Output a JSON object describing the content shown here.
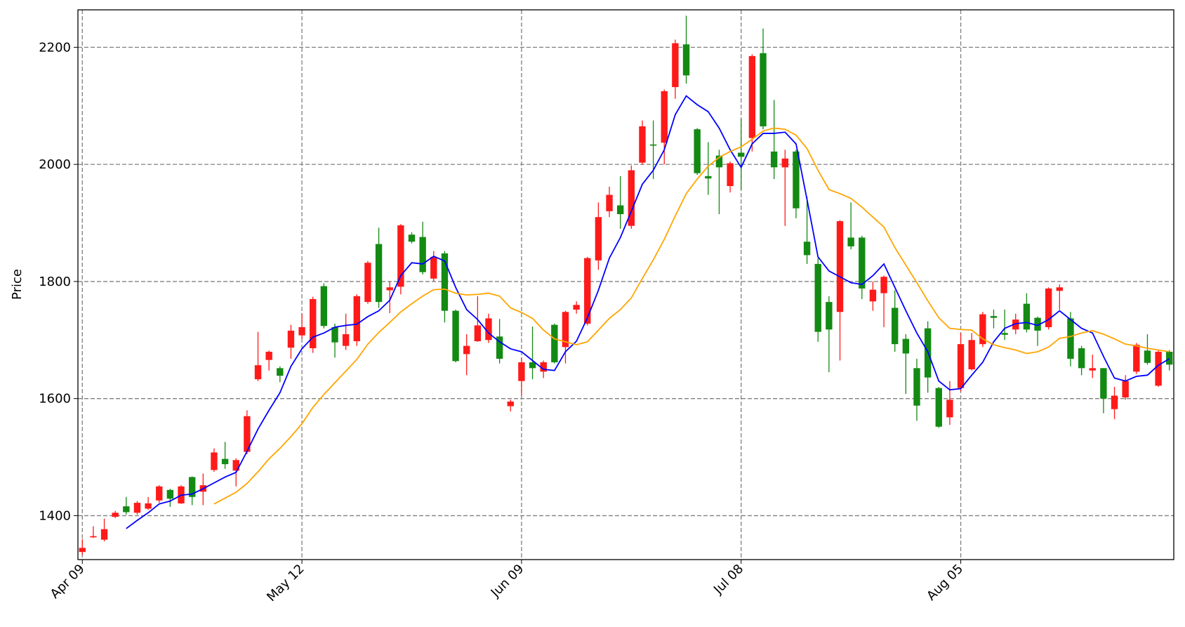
{
  "chart_data": {
    "type": "candlestick",
    "ylabel": "Price",
    "categories": [
      "Apr 09",
      null,
      null,
      null,
      null,
      null,
      null,
      null,
      null,
      null,
      null,
      null,
      null,
      null,
      null,
      null,
      null,
      null,
      null,
      null,
      "May 12",
      null,
      null,
      null,
      null,
      null,
      null,
      null,
      null,
      null,
      null,
      null,
      null,
      null,
      null,
      null,
      null,
      null,
      null,
      null,
      "Jun 09",
      null,
      null,
      null,
      null,
      null,
      null,
      null,
      null,
      null,
      null,
      null,
      null,
      null,
      null,
      null,
      null,
      null,
      null,
      null,
      "Jul 08",
      null,
      null,
      null,
      null,
      null,
      null,
      null,
      null,
      null,
      null,
      null,
      null,
      null,
      null,
      null,
      null,
      null,
      null,
      null,
      "Aug 05",
      null,
      null,
      null,
      null,
      null,
      null,
      null,
      null,
      null,
      null,
      null,
      null,
      null,
      null,
      null,
      null,
      null,
      null,
      null
    ],
    "open": [
      1338,
      1363,
      1359,
      1398,
      1416,
      1405,
      1412,
      1426,
      1444,
      1421,
      1466,
      1441,
      1478,
      1497,
      1477,
      1509,
      1633,
      1666,
      1652,
      1687,
      1708,
      1686,
      1792,
      1722,
      1690,
      1698,
      1765,
      1864,
      1785,
      1791,
      1880,
      1876,
      1805,
      1848,
      1750,
      1676,
      1698,
      1700,
      1706,
      1587,
      1630,
      1662,
      1646,
      1726,
      1688,
      1752,
      1728,
      1836,
      1920,
      1930,
      1895,
      2003,
      2034,
      2037,
      2132,
      2205,
      2060,
      1980,
      2015,
      1963,
      2020,
      2045,
      2190,
      2022,
      1995,
      2022,
      1868,
      1830,
      1765,
      1748,
      1875,
      1875,
      1766,
      1780,
      1755,
      1702,
      1652,
      1720,
      1618,
      1568,
      1618,
      1650,
      1693,
      1741,
      1712,
      1718,
      1762,
      1738,
      1722,
      1784,
      1737,
      1686,
      1648,
      1652,
      1582,
      1602,
      1646,
      1682,
      1622,
      1680
    ],
    "high": [
      1360,
      1382,
      1395,
      1408,
      1432,
      1425,
      1432,
      1452,
      1446,
      1452,
      1467,
      1472,
      1515,
      1526,
      1498,
      1580,
      1714,
      1682,
      1655,
      1726,
      1745,
      1774,
      1797,
      1728,
      1745,
      1778,
      1835,
      1892,
      1800,
      1898,
      1884,
      1902,
      1852,
      1852,
      1752,
      1710,
      1775,
      1745,
      1736,
      1598,
      1670,
      1723,
      1665,
      1728,
      1750,
      1766,
      1842,
      1935,
      1962,
      1980,
      1998,
      2075,
      2075,
      2128,
      2213,
      2254,
      2062,
      2038,
      2025,
      2005,
      2078,
      2188,
      2232,
      2110,
      2025,
      2025,
      1945,
      1840,
      1775,
      1905,
      1935,
      1878,
      1800,
      1810,
      1785,
      1710,
      1668,
      1732,
      1620,
      1630,
      1712,
      1712,
      1748,
      1752,
      1752,
      1745,
      1780,
      1740,
      1790,
      1795,
      1748,
      1690,
      1675,
      1652,
      1620,
      1640,
      1695,
      1710,
      1682,
      1683
    ],
    "low": [
      1333,
      1362,
      1356,
      1396,
      1402,
      1402,
      1410,
      1422,
      1415,
      1420,
      1418,
      1418,
      1475,
      1480,
      1450,
      1505,
      1630,
      1648,
      1628,
      1668,
      1702,
      1678,
      1720,
      1670,
      1683,
      1690,
      1762,
      1755,
      1746,
      1778,
      1865,
      1812,
      1800,
      1730,
      1662,
      1640,
      1697,
      1695,
      1660,
      1578,
      1605,
      1633,
      1635,
      1660,
      1660,
      1745,
      1725,
      1820,
      1910,
      1890,
      1890,
      2000,
      1975,
      2000,
      2112,
      2138,
      1982,
      1948,
      1915,
      1952,
      1957,
      2022,
      2060,
      1975,
      1895,
      1908,
      1830,
      1697,
      1645,
      1665,
      1855,
      1770,
      1750,
      1722,
      1680,
      1608,
      1562,
      1610,
      1550,
      1555,
      1612,
      1648,
      1688,
      1720,
      1700,
      1710,
      1713,
      1690,
      1718,
      1752,
      1655,
      1640,
      1635,
      1575,
      1565,
      1598,
      1642,
      1658,
      1620,
      1648
    ],
    "close": [
      1345,
      1365,
      1377,
      1405,
      1406,
      1422,
      1421,
      1450,
      1429,
      1450,
      1432,
      1452,
      1508,
      1488,
      1495,
      1570,
      1657,
      1680,
      1639,
      1716,
      1722,
      1770,
      1724,
      1696,
      1710,
      1775,
      1832,
      1765,
      1790,
      1896,
      1868,
      1816,
      1842,
      1750,
      1664,
      1690,
      1725,
      1737,
      1668,
      1595,
      1662,
      1652,
      1662,
      1662,
      1748,
      1760,
      1840,
      1910,
      1948,
      1915,
      1990,
      2065,
      2032,
      2125,
      2207,
      2152,
      1985,
      1976,
      1995,
      2002,
      2013,
      2185,
      2065,
      1995,
      2010,
      1925,
      1845,
      1714,
      1718,
      1903,
      1860,
      1788,
      1786,
      1808,
      1693,
      1677,
      1588,
      1636,
      1552,
      1598,
      1693,
      1700,
      1744,
      1738,
      1709,
      1735,
      1718,
      1716,
      1788,
      1790,
      1668,
      1652,
      1652,
      1600,
      1605,
      1630,
      1692,
      1661,
      1680,
      1658
    ],
    "up_color": "#ff1a1a",
    "down_color": "#138a13",
    "lines": [
      {
        "color": "#0000ff",
        "values": [
          null,
          null,
          null,
          null,
          1378,
          1392,
          1405,
          1420,
          1425,
          1435,
          1437,
          1446,
          1456,
          1466,
          1474,
          1510,
          1548,
          1580,
          1610,
          1655,
          1685,
          1705,
          1712,
          1722,
          1725,
          1727,
          1740,
          1750,
          1768,
          1810,
          1832,
          1830,
          1843,
          1835,
          1790,
          1752,
          1735,
          1712,
          1697,
          1685,
          1680,
          1665,
          1650,
          1648,
          1680,
          1698,
          1738,
          1785,
          1840,
          1875,
          1920,
          1966,
          1990,
          2025,
          2085,
          2117,
          2102,
          2090,
          2062,
          2025,
          1995,
          2035,
          2053,
          2053,
          2055,
          2035,
          1940,
          1842,
          1818,
          1808,
          1798,
          1795,
          1810,
          1830,
          1790,
          1750,
          1712,
          1680,
          1630,
          1615,
          1617,
          1640,
          1662,
          1697,
          1720,
          1728,
          1730,
          1725,
          1735,
          1750,
          1735,
          1720,
          1712,
          1672,
          1635,
          1630,
          1638,
          1640,
          1657,
          1668
        ]
      },
      {
        "color": "#ffa500",
        "values": [
          null,
          null,
          null,
          null,
          null,
          null,
          null,
          null,
          null,
          null,
          null,
          null,
          1420,
          1430,
          1440,
          1455,
          1475,
          1497,
          1515,
          1535,
          1557,
          1585,
          1607,
          1627,
          1647,
          1667,
          1693,
          1713,
          1730,
          1748,
          1762,
          1775,
          1786,
          1787,
          1780,
          1777,
          1778,
          1780,
          1775,
          1755,
          1747,
          1737,
          1717,
          1702,
          1697,
          1692,
          1697,
          1717,
          1737,
          1752,
          1772,
          1805,
          1837,
          1872,
          1912,
          1950,
          1975,
          1997,
          2012,
          2022,
          2030,
          2043,
          2057,
          2062,
          2060,
          2050,
          2027,
          1990,
          1957,
          1950,
          1942,
          1927,
          1910,
          1893,
          1858,
          1828,
          1798,
          1767,
          1738,
          1720,
          1718,
          1717,
          1702,
          1692,
          1687,
          1683,
          1677,
          1680,
          1688,
          1703,
          1706,
          1712,
          1716,
          1710,
          1702,
          1693,
          1690,
          1686,
          1683,
          1680
        ]
      }
    ],
    "xlim": [
      -0.4,
      99.4
    ],
    "ylim": [
      1325,
      2264
    ],
    "yticks": [
      1400,
      1600,
      1800,
      2000,
      2200
    ],
    "grid": true
  }
}
